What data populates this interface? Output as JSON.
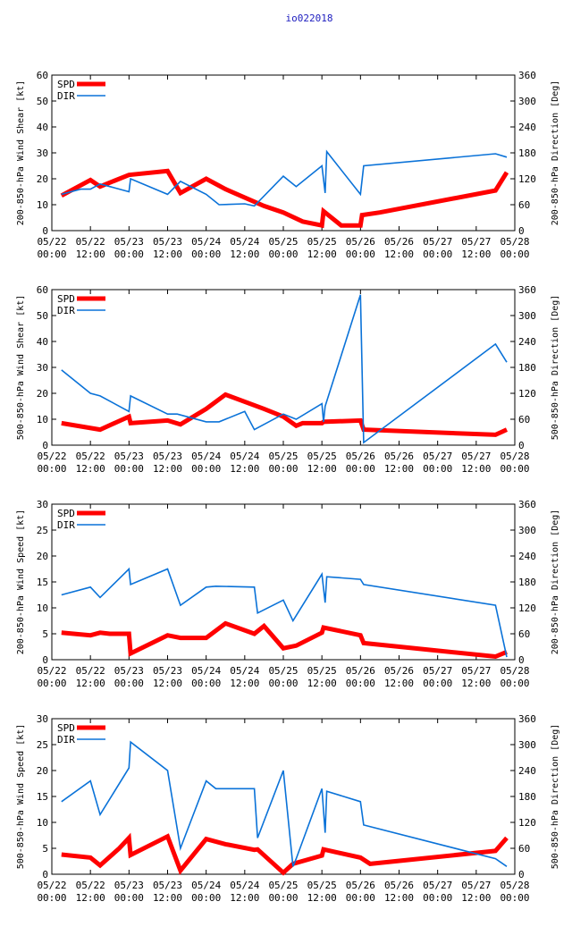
{
  "page": {
    "title": "io022018",
    "colors": {
      "title": "#2020c0",
      "spd": "#ff0000",
      "dir": "#0a72d8",
      "axis": "#000000"
    }
  },
  "chart_data": [
    {
      "type": "line",
      "title": "io022018",
      "ylabel_left": "200-850-hPa Wind Shear [kt]",
      "ylabel_right": "200-850-hPa Direction [Deg]",
      "xlabel": "",
      "x_ticks": [
        "05/22 00:00",
        "05/22 12:00",
        "05/23 00:00",
        "05/23 12:00",
        "05/24 00:00",
        "05/24 12:00",
        "05/25 00:00",
        "05/25 12:00",
        "05/26 00:00",
        "05/26 12:00",
        "05/27 00:00",
        "05/27 12:00",
        "05/28 00:00"
      ],
      "xlim_hours": [
        0,
        144
      ],
      "ylim_left": [
        0,
        60
      ],
      "ylim_right": [
        0,
        360
      ],
      "yticks_left": [
        0,
        10,
        20,
        30,
        40,
        50,
        60
      ],
      "yticks_right": [
        0,
        60,
        120,
        180,
        240,
        300,
        360
      ],
      "legend": "top-left",
      "series": [
        {
          "name": "SPD",
          "axis": "left",
          "x": [
            3,
            12,
            15,
            18,
            24,
            36,
            40,
            48,
            54,
            66,
            72,
            78,
            84,
            84.5,
            90,
            96,
            96.5,
            102,
            138,
            141.5
          ],
          "y": [
            13.5,
            19.5,
            17,
            18.5,
            21.5,
            23,
            14.5,
            20,
            16,
            9.5,
            7,
            3.5,
            2,
            7.5,
            2,
            2,
            6,
            7,
            15.5,
            22.5
          ]
        },
        {
          "name": "DIR",
          "axis": "right",
          "x": [
            3,
            9,
            12,
            15,
            18,
            24,
            24.5,
            36,
            40,
            48,
            52,
            60,
            63,
            72,
            76,
            84,
            85,
            85.5,
            96,
            97,
            138,
            141.5
          ],
          "y": [
            84,
            96,
            96,
            108,
            102,
            90,
            120,
            84,
            114,
            84,
            60,
            62,
            57,
            126,
            102,
            150,
            87,
            183,
            84,
            150,
            178,
            170
          ]
        }
      ]
    },
    {
      "type": "line",
      "ylabel_left": "500-850-hPa Wind Shear [kt]",
      "ylabel_right": "500-850-hPa Direction [Deg]",
      "xlabel": "",
      "x_ticks": [
        "05/22 00:00",
        "05/22 12:00",
        "05/23 00:00",
        "05/23 12:00",
        "05/24 00:00",
        "05/24 12:00",
        "05/25 00:00",
        "05/25 12:00",
        "05/26 00:00",
        "05/26 12:00",
        "05/27 00:00",
        "05/27 12:00",
        "05/28 00:00"
      ],
      "xlim_hours": [
        0,
        144
      ],
      "ylim_left": [
        0,
        60
      ],
      "ylim_right": [
        0,
        360
      ],
      "yticks_left": [
        0,
        10,
        20,
        30,
        40,
        50,
        60
      ],
      "yticks_right": [
        0,
        60,
        120,
        180,
        240,
        300,
        360
      ],
      "legend": "top-left",
      "series": [
        {
          "name": "SPD",
          "axis": "left",
          "x": [
            3,
            15,
            24,
            24.5,
            36,
            40,
            48,
            54,
            66,
            72,
            76,
            78,
            84,
            84.5,
            96,
            97,
            138,
            141.5
          ],
          "y": [
            8.5,
            6,
            11,
            8.5,
            9.5,
            8,
            14,
            19.5,
            14,
            11,
            7.5,
            8.5,
            8.5,
            9,
            9.5,
            6,
            4,
            6
          ]
        },
        {
          "name": "DIR",
          "axis": "right",
          "x": [
            3,
            12,
            15,
            24,
            24.5,
            36,
            39,
            48,
            52,
            60,
            63,
            72,
            76,
            84,
            84.5,
            85,
            96,
            97,
            138,
            141.5
          ],
          "y": [
            174,
            120,
            114,
            78,
            114,
            72,
            72,
            54,
            54,
            78,
            36,
            72,
            60,
            96,
            54,
            90,
            348,
            6,
            234,
            192
          ]
        }
      ]
    },
    {
      "type": "line",
      "ylabel_left": "200-850-hPa Wind Speed [kt]",
      "ylabel_right": "200-850-hPa Direction [Deg]",
      "xlabel": "",
      "x_ticks": [
        "05/22 00:00",
        "05/22 12:00",
        "05/23 00:00",
        "05/23 12:00",
        "05/24 00:00",
        "05/24 12:00",
        "05/25 00:00",
        "05/25 12:00",
        "05/26 00:00",
        "05/26 12:00",
        "05/27 00:00",
        "05/27 12:00",
        "05/28 00:00"
      ],
      "xlim_hours": [
        0,
        144
      ],
      "ylim_left": [
        0,
        30
      ],
      "ylim_right": [
        0,
        360
      ],
      "yticks_left": [
        0,
        5,
        10,
        15,
        20,
        25,
        30
      ],
      "yticks_right": [
        0,
        60,
        120,
        180,
        240,
        300,
        360
      ],
      "legend": "top-left",
      "series": [
        {
          "name": "SPD",
          "axis": "left",
          "x": [
            3,
            12,
            15,
            18,
            24,
            24.5,
            36,
            40,
            48,
            54,
            63,
            66,
            72,
            76,
            84,
            84.5,
            96,
            97,
            138,
            141.5
          ],
          "y": [
            5.2,
            4.7,
            5.2,
            5,
            5,
            1.2,
            4.7,
            4.2,
            4.2,
            7,
            5,
            6.5,
            2.2,
            2.7,
            5.2,
            6.2,
            4.7,
            3.2,
            0.6,
            1.5
          ]
        },
        {
          "name": "DIR",
          "axis": "right",
          "x": [
            3,
            12,
            15,
            24,
            24.5,
            36,
            40,
            48,
            51,
            63,
            64,
            72,
            75,
            76,
            84,
            85,
            85.5,
            96,
            97,
            138,
            141.5
          ],
          "y": [
            150,
            168,
            144,
            210,
            174,
            210,
            126,
            168,
            170,
            168,
            108,
            138,
            90,
            102,
            198,
            132,
            192,
            186,
            174,
            126,
            6
          ]
        }
      ]
    },
    {
      "type": "line",
      "ylabel_left": "500-850-hPa Wind Speed [kt]",
      "ylabel_right": "500-850-hPa Direction [Deg]",
      "xlabel": "",
      "x_ticks": [
        "05/22 00:00",
        "05/22 12:00",
        "05/23 00:00",
        "05/23 12:00",
        "05/24 00:00",
        "05/24 12:00",
        "05/25 00:00",
        "05/25 12:00",
        "05/26 00:00",
        "05/26 12:00",
        "05/27 00:00",
        "05/27 12:00",
        "05/28 00:00"
      ],
      "xlim_hours": [
        0,
        144
      ],
      "ylim_left": [
        0,
        30
      ],
      "ylim_right": [
        0,
        360
      ],
      "yticks_left": [
        0,
        5,
        10,
        15,
        20,
        25,
        30
      ],
      "yticks_right": [
        0,
        60,
        120,
        180,
        240,
        300,
        360
      ],
      "legend": "top-left",
      "series": [
        {
          "name": "SPD",
          "axis": "left",
          "x": [
            3,
            12,
            15,
            21,
            24,
            24.5,
            36,
            40,
            48,
            54,
            63,
            64,
            72,
            75,
            84,
            84.5,
            96,
            99,
            138,
            141.5
          ],
          "y": [
            3.8,
            3.2,
            1.7,
            5,
            7,
            3.7,
            7.3,
            0.7,
            6.8,
            5.8,
            4.7,
            4.8,
            0.3,
            2,
            3.6,
            4.8,
            3.2,
            2,
            4.5,
            7
          ]
        },
        {
          "name": "DIR",
          "axis": "right",
          "x": [
            3,
            12,
            15,
            24,
            24.5,
            36,
            40,
            48,
            51,
            60,
            63,
            64,
            72,
            75,
            76,
            84,
            85,
            85.5,
            96,
            97,
            138,
            141.5
          ],
          "y": [
            168,
            216,
            138,
            246,
            306,
            240,
            60,
            216,
            198,
            198,
            198,
            84,
            240,
            18,
            36,
            198,
            96,
            192,
            168,
            114,
            36,
            18
          ]
        }
      ]
    }
  ]
}
